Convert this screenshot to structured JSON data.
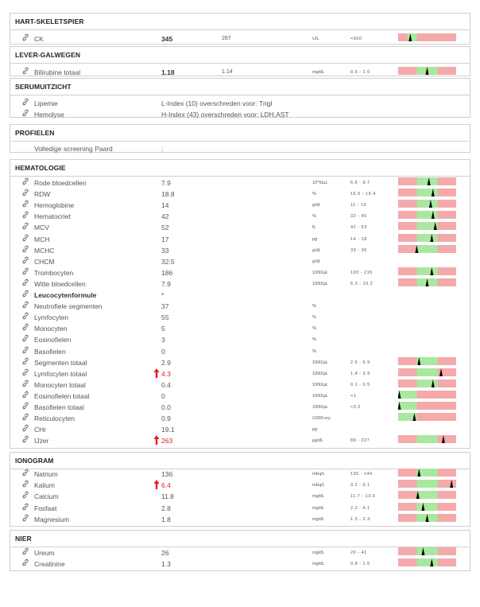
{
  "colors": {
    "range_low": "#f4a9ab",
    "range_normal": "#a9e8a0",
    "marker": "#000000",
    "high": "#e02020"
  },
  "sections": [
    {
      "id": "hart",
      "title": "HART-SKELETSPIER",
      "rows": [
        {
          "name": "CK",
          "value": "345",
          "prev": "267",
          "unit": "U/L",
          "range": "<500",
          "gauge": {
            "normal": [
              0.16,
              0.32
            ],
            "marker": 0.21
          },
          "icon": true,
          "big": true
        }
      ]
    },
    {
      "id": "lever",
      "title": "LEVER-GALWEGEN",
      "rows": [
        {
          "name": "Bilirubine totaal",
          "value": "1.18",
          "prev": "1.14",
          "unit": "mg/dL",
          "range": "0.5   -   2.0",
          "gauge": {
            "normal": [
              0.32,
              0.68
            ],
            "marker": 0.5
          },
          "icon": true,
          "big": true
        }
      ]
    },
    {
      "id": "serum",
      "title": "SERUMUITZICHT",
      "rows": [
        {
          "name": "Lipemie",
          "text": "L-Index (10) overschreden voor: Trigl",
          "icon": true
        },
        {
          "name": "Hemolyse",
          "text": "H-Index (43) overschreden voor: LDH,AST",
          "icon": true
        }
      ]
    },
    {
      "id": "profielen",
      "title": "PROFIELEN",
      "rows": [
        {
          "name": "Volledige screening Paard",
          "text": ":",
          "icon": false
        }
      ]
    },
    {
      "id": "hema",
      "title": "HEMATOLOGIE",
      "rows": [
        {
          "name": "Rode bloedcellen",
          "value": "7.9",
          "unit": "10^6/µL",
          "range": "6.6   -   9.7",
          "gauge": {
            "normal": [
              0.32,
              0.68
            ],
            "marker": 0.53
          },
          "icon": true
        },
        {
          "name": "RDW",
          "value": "18.8",
          "unit": "%",
          "range": "16.6   -   19.4",
          "gauge": {
            "normal": [
              0.32,
              0.68
            ],
            "marker": 0.6
          },
          "icon": true
        },
        {
          "name": "Hemoglobine",
          "value": "14",
          "unit": "g/dL",
          "range": "11   -   16",
          "gauge": {
            "normal": [
              0.32,
              0.68
            ],
            "marker": 0.56
          },
          "icon": true
        },
        {
          "name": "Hematocriet",
          "value": "42",
          "unit": "%",
          "range": "32   -   45",
          "gauge": {
            "normal": [
              0.32,
              0.68
            ],
            "marker": 0.6
          },
          "icon": true
        },
        {
          "name": "MCV",
          "value": "52",
          "unit": "fL",
          "range": "42   -   53",
          "gauge": {
            "normal": [
              0.32,
              0.68
            ],
            "marker": 0.64
          },
          "icon": true
        },
        {
          "name": "MCH",
          "value": "17",
          "unit": "pg",
          "range": "14   -   18",
          "gauge": {
            "normal": [
              0.32,
              0.68
            ],
            "marker": 0.58
          },
          "icon": true
        },
        {
          "name": "MCHC",
          "value": "33",
          "unit": "g/dL",
          "range": "33   -   36",
          "gauge": {
            "normal": [
              0.32,
              0.68
            ],
            "marker": 0.32
          },
          "icon": true
        },
        {
          "name": "CHCM",
          "value": "32.5",
          "unit": "g/dL",
          "icon": true
        },
        {
          "name": "Trombocyten",
          "value": "186",
          "unit": "1000/µL",
          "range": "100   -   216",
          "gauge": {
            "normal": [
              0.32,
              0.68
            ],
            "marker": 0.58
          },
          "icon": true
        },
        {
          "name": "Witte bloedcellen",
          "value": "7.9",
          "unit": "1000/µL",
          "range": "5.3   -   10.2",
          "gauge": {
            "normal": [
              0.32,
              0.68
            ],
            "marker": 0.5
          },
          "icon": true
        },
        {
          "name": "Leucocytenformule",
          "value": "*",
          "icon": true,
          "bold": true
        },
        {
          "name": "Neutrofiele segmenten",
          "value": "37",
          "unit": "%",
          "icon": true
        },
        {
          "name": "Lymfocyten",
          "value": "55",
          "unit": "%",
          "icon": true
        },
        {
          "name": "Monocyten",
          "value": "5",
          "unit": "%",
          "icon": true
        },
        {
          "name": "Eosinofielen",
          "value": "3",
          "unit": "%",
          "icon": true
        },
        {
          "name": "Basofielen",
          "value": "0",
          "unit": "%",
          "icon": true
        },
        {
          "name": "Segmenten totaal",
          "value": "2.9",
          "unit": "1000/µL",
          "range": "2.5   -   5.9",
          "gauge": {
            "normal": [
              0.32,
              0.68
            ],
            "marker": 0.36
          },
          "icon": true
        },
        {
          "name": "Lymfocyten totaal",
          "value": "4.3",
          "unit": "1000/µL",
          "range": "1.4   -   3.9",
          "gauge": {
            "normal": [
              0.32,
              0.68
            ],
            "marker": 0.74
          },
          "icon": true,
          "high": true
        },
        {
          "name": "Monocyten totaal",
          "value": "0.4",
          "unit": "1000/µL",
          "range": "0.1   -   0.5",
          "gauge": {
            "normal": [
              0.32,
              0.68
            ],
            "marker": 0.6
          },
          "icon": true
        },
        {
          "name": "Eosinofielen totaal",
          "value": "0",
          "unit": "1000/µL",
          "range": "<1",
          "gauge": {
            "normal": [
              0.0,
              0.32
            ],
            "marker": 0.02
          },
          "icon": true
        },
        {
          "name": "Basofielen totaal",
          "value": "0.0",
          "unit": "1000/µL",
          "range": "<0.2",
          "gauge": {
            "normal": [
              0.0,
              0.32
            ],
            "marker": 0.02
          },
          "icon": true
        },
        {
          "name": "Reticulocyten",
          "value": "0.9",
          "unit": "/1000 ery",
          "gauge": {
            "normal": [
              0.0,
              0.32
            ],
            "marker": 0.28
          },
          "icon": true
        },
        {
          "name": "CHr",
          "value": "19.1",
          "unit": "pg",
          "icon": true
        },
        {
          "name": "IJzer",
          "value": "263",
          "unit": "µg/dL",
          "range": "89   -   227",
          "gauge": {
            "normal": [
              0.32,
              0.68
            ],
            "marker": 0.78
          },
          "icon": true,
          "high": true
        }
      ]
    },
    {
      "id": "iono",
      "title": "IONOGRAM",
      "rows": [
        {
          "name": "Natrium",
          "value": "136",
          "unit": "mEq/L",
          "range": "135   -   144",
          "gauge": {
            "normal": [
              0.32,
              0.68
            ],
            "marker": 0.36
          },
          "icon": true
        },
        {
          "name": "Kalium",
          "value": "6.4",
          "unit": "mEq/L",
          "range": "3.2   -   5.1",
          "gauge": {
            "normal": [
              0.32,
              0.68
            ],
            "marker": 0.92
          },
          "icon": true,
          "high": true
        },
        {
          "name": "Calcium",
          "value": "11.8",
          "unit": "mg/dL",
          "range": "11.7   -   13.6",
          "gauge": {
            "normal": [
              0.32,
              0.68
            ],
            "marker": 0.34
          },
          "icon": true
        },
        {
          "name": "Fosfaat",
          "value": "2.8",
          "unit": "mg/dL",
          "range": "2.2   -   4.1",
          "gauge": {
            "normal": [
              0.32,
              0.68
            ],
            "marker": 0.43
          },
          "icon": true
        },
        {
          "name": "Magnesium",
          "value": "1.8",
          "unit": "mg/dL",
          "range": "1.3   -   2.3",
          "gauge": {
            "normal": [
              0.32,
              0.68
            ],
            "marker": 0.5
          },
          "icon": true
        }
      ]
    },
    {
      "id": "nier",
      "title": "NIER",
      "rows": [
        {
          "name": "Ureum",
          "value": "26",
          "unit": "mg/dL",
          "range": "20   -   41",
          "gauge": {
            "normal": [
              0.32,
              0.68
            ],
            "marker": 0.43
          },
          "icon": true
        },
        {
          "name": "Creatinine",
          "value": "1.3",
          "unit": "mg/dL",
          "range": "0.8   -   1.5",
          "gauge": {
            "normal": [
              0.32,
              0.68
            ],
            "marker": 0.58
          },
          "icon": true
        }
      ]
    }
  ]
}
